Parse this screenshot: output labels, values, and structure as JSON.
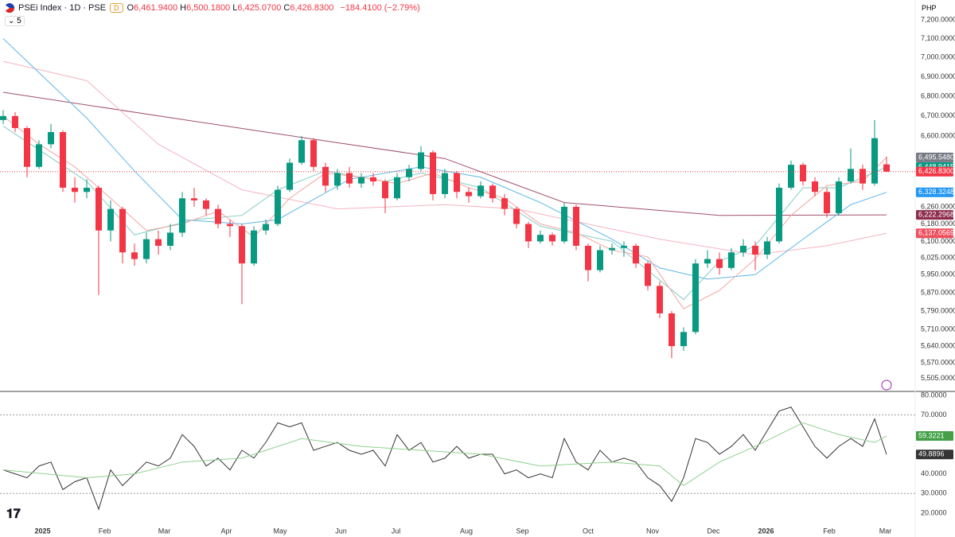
{
  "header": {
    "symbol": "PSEi Index · 1D · PSE",
    "badge": "D",
    "ohlc": [
      {
        "key": "O",
        "value": "6,461.9400"
      },
      {
        "key": "H",
        "value": "6,500.1800"
      },
      {
        "key": "L",
        "value": "6,425.0700"
      },
      {
        "key": "C",
        "value": "6,426.8300"
      }
    ],
    "change": "−184.4100 (−2.79%)",
    "indicators": "5",
    "currency": "PHP"
  },
  "chart_data": [
    {
      "type": "candlestick",
      "log_scale": true,
      "grid": false,
      "up_color": "#089981",
      "down_color": "#f23645",
      "ylim": [
        5452,
        7308
      ],
      "yticks": [
        {
          "value": 7200,
          "label": "7,200.0000"
        },
        {
          "value": 7100,
          "label": "7,100.0000"
        },
        {
          "value": 7000,
          "label": "7,000.0000"
        },
        {
          "value": 6900,
          "label": "6,900.0000"
        },
        {
          "value": 6800,
          "label": "6,800.0000"
        },
        {
          "value": 6700,
          "label": "6,700.0000"
        },
        {
          "value": 6600,
          "label": "6,600.0000"
        },
        {
          "value": 6260,
          "label": "6,260.0000"
        },
        {
          "value": 6180,
          "label": "6,180.0000"
        },
        {
          "value": 6100,
          "label": "6,100.0000"
        },
        {
          "value": 6025,
          "label": "6,025.0000"
        },
        {
          "value": 5950,
          "label": "5,950.0000"
        },
        {
          "value": 5870,
          "label": "5,870.0000"
        },
        {
          "value": 5790,
          "label": "5,790.0000"
        },
        {
          "value": 5710,
          "label": "5,710.0000"
        },
        {
          "value": 5640,
          "label": "5,640.0000"
        },
        {
          "value": 5570,
          "label": "5,570.0000"
        },
        {
          "value": 5505,
          "label": "5,505.0000"
        }
      ],
      "ohlc": [
        [
          6680,
          6730,
          6660,
          6700
        ],
        [
          6700,
          6720,
          6620,
          6640
        ],
        [
          6640,
          6650,
          6400,
          6450
        ],
        [
          6450,
          6580,
          6440,
          6560
        ],
        [
          6560,
          6660,
          6540,
          6620
        ],
        [
          6620,
          6630,
          6330,
          6350
        ],
        [
          6350,
          6400,
          6280,
          6330
        ],
        [
          6330,
          6390,
          6300,
          6350
        ],
        [
          6350,
          6360,
          5860,
          6150
        ],
        [
          6150,
          6290,
          6100,
          6250
        ],
        [
          6250,
          6260,
          6000,
          6050
        ],
        [
          6050,
          6090,
          5990,
          6020
        ],
        [
          6020,
          6140,
          6000,
          6110
        ],
        [
          6110,
          6150,
          6040,
          6080
        ],
        [
          6080,
          6180,
          6060,
          6140
        ],
        [
          6140,
          6330,
          6120,
          6300
        ],
        [
          6300,
          6350,
          6260,
          6290
        ],
        [
          6290,
          6300,
          6220,
          6250
        ],
        [
          6250,
          6270,
          6160,
          6180
        ],
        [
          6180,
          6200,
          6120,
          6170
        ],
        [
          6170,
          6180,
          5820,
          6000
        ],
        [
          6000,
          6170,
          5990,
          6150
        ],
        [
          6150,
          6200,
          6130,
          6180
        ],
        [
          6180,
          6360,
          6170,
          6340
        ],
        [
          6340,
          6490,
          6330,
          6470
        ],
        [
          6470,
          6600,
          6460,
          6580
        ],
        [
          6580,
          6590,
          6430,
          6450
        ],
        [
          6450,
          6470,
          6330,
          6360
        ],
        [
          6360,
          6440,
          6340,
          6420
        ],
        [
          6420,
          6450,
          6350,
          6370
        ],
        [
          6370,
          6420,
          6350,
          6400
        ],
        [
          6400,
          6420,
          6360,
          6380
        ],
        [
          6380,
          6390,
          6230,
          6300
        ],
        [
          6300,
          6420,
          6290,
          6400
        ],
        [
          6400,
          6460,
          6380,
          6440
        ],
        [
          6440,
          6550,
          6430,
          6520
        ],
        [
          6520,
          6530,
          6290,
          6320
        ],
        [
          6320,
          6440,
          6300,
          6420
        ],
        [
          6420,
          6430,
          6300,
          6330
        ],
        [
          6330,
          6350,
          6280,
          6310
        ],
        [
          6310,
          6380,
          6300,
          6360
        ],
        [
          6360,
          6370,
          6280,
          6300
        ],
        [
          6300,
          6320,
          6220,
          6250
        ],
        [
          6250,
          6260,
          6160,
          6180
        ],
        [
          6180,
          6190,
          6070,
          6100
        ],
        [
          6100,
          6150,
          6090,
          6130
        ],
        [
          6130,
          6140,
          6080,
          6100
        ],
        [
          6100,
          6280,
          6090,
          6260
        ],
        [
          6260,
          6270,
          6060,
          6080
        ],
        [
          6080,
          6090,
          5920,
          5970
        ],
        [
          5970,
          6080,
          5960,
          6060
        ],
        [
          6060,
          6090,
          6040,
          6070
        ],
        [
          6070,
          6100,
          6030,
          6080
        ],
        [
          6080,
          6090,
          5980,
          6000
        ],
        [
          6000,
          6010,
          5880,
          5900
        ],
        [
          5900,
          5920,
          5760,
          5780
        ],
        [
          5780,
          5790,
          5590,
          5640
        ],
        [
          5640,
          5720,
          5620,
          5700
        ],
        [
          5700,
          6020,
          5690,
          6000
        ],
        [
          6000,
          6060,
          5980,
          6020
        ],
        [
          6020,
          6050,
          5950,
          5980
        ],
        [
          5980,
          6070,
          5970,
          6050
        ],
        [
          6050,
          6110,
          6030,
          6080
        ],
        [
          6080,
          6100,
          5970,
          6040
        ],
        [
          6040,
          6120,
          6020,
          6100
        ],
        [
          6100,
          6370,
          6090,
          6350
        ],
        [
          6350,
          6480,
          6340,
          6460
        ],
        [
          6460,
          6470,
          6360,
          6380
        ],
        [
          6380,
          6400,
          6310,
          6330
        ],
        [
          6330,
          6350,
          6210,
          6230
        ],
        [
          6230,
          6400,
          6220,
          6380
        ],
        [
          6380,
          6540,
          6370,
          6440
        ],
        [
          6440,
          6460,
          6340,
          6370
        ],
        [
          6370,
          6680,
          6360,
          6590
        ],
        [
          6461.94,
          6500.18,
          6425.07,
          6426.83
        ]
      ],
      "last_price": {
        "value": 6426.83,
        "label": "6,426.8300",
        "color": "#f23645"
      },
      "series": [
        {
          "color": "#a0506e",
          "label_color": "#8e2e4e",
          "last_label": "6,222.2968",
          "x": [
            0,
            22,
            37,
            47,
            60,
            74
          ],
          "values": [
            6820,
            6620,
            6490,
            6280,
            6220,
            6222.2968
          ]
        },
        {
          "color": "#f6b3c1",
          "label_color": "#f0505e",
          "last_label": "6,137.0569",
          "x": [
            0,
            7,
            13,
            20,
            28,
            37,
            43,
            55,
            63,
            69,
            74
          ],
          "values": [
            6980,
            6880,
            6560,
            6340,
            6250,
            6270,
            6250,
            6110,
            6040,
            6080,
            6137.0569
          ]
        },
        {
          "color": "#5db7e8",
          "label_color": "#2196f3",
          "last_label": "6,328.3248",
          "x": [
            0,
            7,
            11,
            15,
            20,
            23,
            29,
            35,
            40,
            45,
            51,
            55,
            59,
            63,
            67,
            71,
            74
          ],
          "values": [
            7100,
            6690,
            6430,
            6200,
            6180,
            6200,
            6390,
            6450,
            6400,
            6280,
            6110,
            5980,
            5930,
            5950,
            6110,
            6270,
            6328.3248
          ]
        },
        {
          "color": "#80cfc4",
          "label_color": "#089981",
          "last_label": "6,448.9415",
          "x": [
            0,
            7,
            11,
            16,
            20,
            23,
            27,
            32,
            35,
            40,
            45,
            51,
            57,
            60,
            63,
            67,
            70,
            74
          ],
          "values": [
            6650,
            6380,
            6130,
            6200,
            6220,
            6340,
            6430,
            6380,
            6420,
            6350,
            6170,
            6100,
            5840,
            6010,
            6080,
            6350,
            6350,
            6448.9415
          ]
        },
        {
          "color": "#f4a3a0",
          "label_color": "#787b86",
          "last_label": "6,495.5480",
          "x": [
            0,
            3,
            6,
            9,
            12,
            15,
            18,
            21,
            24,
            27,
            30,
            33,
            36,
            39,
            42,
            45,
            48,
            51,
            54,
            57,
            60,
            63,
            66,
            69,
            72,
            74
          ],
          "values": [
            6700,
            6560,
            6450,
            6300,
            6150,
            6180,
            6240,
            6120,
            6300,
            6420,
            6400,
            6370,
            6420,
            6350,
            6300,
            6180,
            6140,
            6060,
            6030,
            5800,
            5880,
            6020,
            6220,
            6360,
            6380,
            6495.548
          ]
        }
      ]
    },
    {
      "type": "line",
      "ylim": [
        13.9,
        81.6
      ],
      "yticks": [
        {
          "value": 80,
          "label": "80.0000"
        },
        {
          "value": 70,
          "label": "70.0000"
        },
        {
          "value": 60,
          "label": "60.0000"
        },
        {
          "value": 50,
          "label": "50.0000"
        },
        {
          "value": 40,
          "label": "40.0000"
        },
        {
          "value": 30,
          "label": "30.0000"
        },
        {
          "value": 20,
          "label": "20.0000"
        }
      ],
      "bands": [
        70,
        30
      ],
      "xticks": [
        {
          "value": 3.3,
          "label": "2025"
        },
        {
          "value": 8.5,
          "label": "Feb"
        },
        {
          "value": 13.5,
          "label": "Mar"
        },
        {
          "value": 18.7,
          "label": "Apr"
        },
        {
          "value": 23.2,
          "label": "May"
        },
        {
          "value": 28.3,
          "label": "Jun"
        },
        {
          "value": 32.9,
          "label": "Jul"
        },
        {
          "value": 38.8,
          "label": "Aug"
        },
        {
          "value": 43.5,
          "label": "Sep"
        },
        {
          "value": 49,
          "label": "Oct"
        },
        {
          "value": 54.4,
          "label": "Nov"
        },
        {
          "value": 59.5,
          "label": "Dec"
        },
        {
          "value": 63.9,
          "label": "2026"
        },
        {
          "value": 69.2,
          "label": "Feb"
        },
        {
          "value": 73.9,
          "label": "Mar"
        }
      ],
      "series": [
        {
          "color": "#333333",
          "label_color": "#333333",
          "last_label": "49.8896",
          "values": [
            42,
            40,
            38,
            44,
            46,
            32,
            36,
            38,
            22,
            42,
            34,
            40,
            46,
            44,
            48,
            60,
            54,
            44,
            48,
            42,
            52,
            48,
            56,
            66,
            64,
            66,
            52,
            54,
            56,
            52,
            50,
            52,
            44,
            60,
            52,
            56,
            46,
            48,
            54,
            48,
            50,
            50,
            40,
            42,
            38,
            40,
            38,
            58,
            46,
            42,
            52,
            46,
            48,
            46,
            38,
            34,
            26,
            38,
            58,
            56,
            50,
            54,
            60,
            52,
            62,
            72,
            74,
            64,
            54,
            48,
            54,
            58,
            54,
            68,
            49.8896
          ]
        },
        {
          "color": "#8fd18f",
          "label_color": "#43a047",
          "last_label": "59.3221",
          "x": [
            0,
            7,
            11,
            15,
            20,
            25,
            30,
            35,
            40,
            45,
            51,
            55,
            57,
            60,
            63,
            67,
            70,
            73,
            74
          ],
          "values": [
            42,
            38,
            40,
            46,
            48,
            58,
            54,
            52,
            50,
            44,
            46,
            44,
            34,
            46,
            54,
            66,
            60,
            56,
            59.3221
          ]
        }
      ]
    }
  ]
}
